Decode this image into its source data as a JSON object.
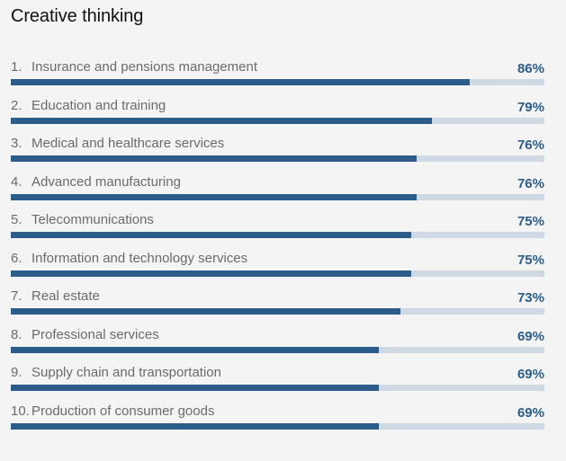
{
  "chart_data": {
    "type": "bar",
    "orientation": "horizontal",
    "title": "Creative thinking",
    "value_suffix": "%",
    "xlim": [
      0,
      100
    ],
    "colors": {
      "bar": "#2c5d8a",
      "track": "#cfd9e4",
      "value_text": "#2c5d8a"
    },
    "categories": [
      {
        "num": "1.",
        "label": "Insurance and pensions management",
        "value": 86,
        "display": "86%"
      },
      {
        "num": "2.",
        "label": "Education and training",
        "value": 79,
        "display": "79%"
      },
      {
        "num": "3.",
        "label": "Medical and healthcare services",
        "value": 76,
        "display": "76%"
      },
      {
        "num": "4.",
        "label": "Advanced manufacturing",
        "value": 76,
        "display": "76%"
      },
      {
        "num": "5.",
        "label": "Telecommunications",
        "value": 75,
        "display": "75%"
      },
      {
        "num": "6.",
        "label": "Information and technology services",
        "value": 75,
        "display": "75%"
      },
      {
        "num": "7.",
        "label": "Real estate",
        "value": 73,
        "display": "73%"
      },
      {
        "num": "8.",
        "label": "Professional services",
        "value": 69,
        "display": "69%"
      },
      {
        "num": "9.",
        "label": "Supply chain and transportation",
        "value": 69,
        "display": "69%"
      },
      {
        "num": "10.",
        "label": "Production of consumer goods",
        "value": 69,
        "display": "69%"
      }
    ]
  }
}
